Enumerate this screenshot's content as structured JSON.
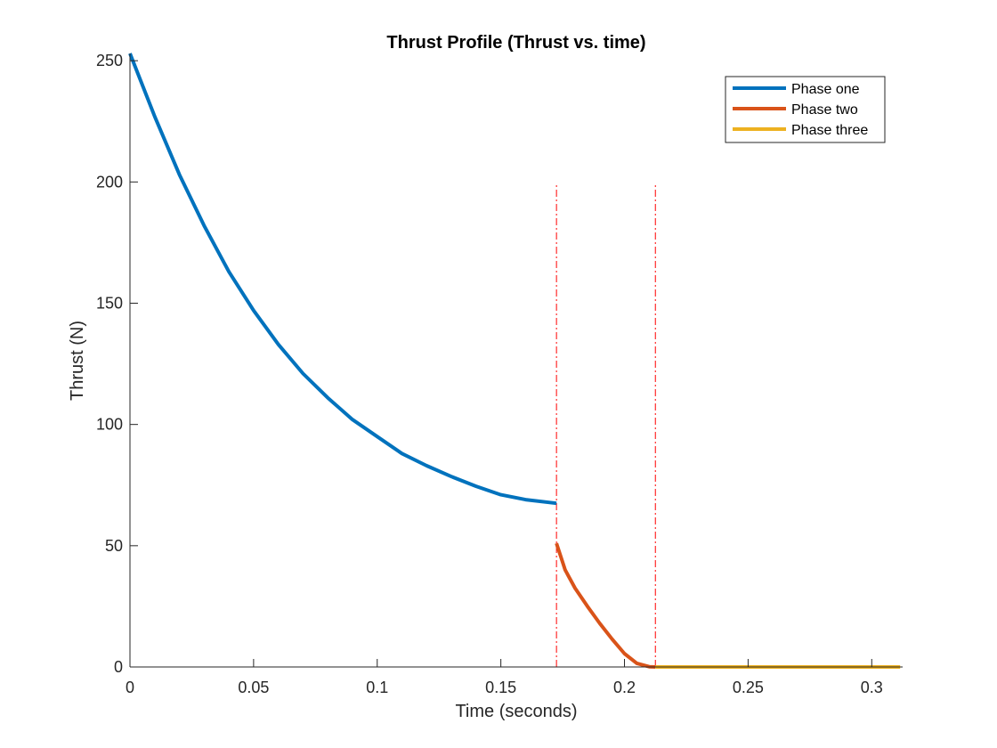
{
  "chart_data": {
    "type": "line",
    "title": "Thrust Profile (Thrust vs. time)",
    "xlabel": "Time (seconds)",
    "ylabel": "Thrust (N)",
    "xlim": [
      0,
      0.3125
    ],
    "ylim": [
      0,
      253
    ],
    "xticks": [
      0,
      0.05,
      0.1,
      0.15,
      0.2,
      0.25,
      0.3
    ],
    "xtick_labels": [
      "0",
      "0.05",
      "0.1",
      "0.15",
      "0.2",
      "0.25",
      "0.3"
    ],
    "yticks": [
      0,
      50,
      100,
      150,
      200,
      250
    ],
    "ytick_labels": [
      "0",
      "50",
      "100",
      "150",
      "200",
      "250"
    ],
    "grid": false,
    "legend_position": "top-right",
    "series": [
      {
        "name": "Phase one",
        "color": "#0072BD",
        "x": [
          0,
          0.01,
          0.02,
          0.03,
          0.04,
          0.05,
          0.06,
          0.07,
          0.08,
          0.09,
          0.1,
          0.11,
          0.12,
          0.13,
          0.14,
          0.15,
          0.16,
          0.1725
        ],
        "y": [
          253,
          227,
          203,
          182,
          163,
          147,
          133,
          121,
          111,
          102,
          95,
          88,
          83,
          78.5,
          74.5,
          71,
          69,
          67.5
        ]
      },
      {
        "name": "Phase two",
        "color": "#D95319",
        "x": [
          0.1725,
          0.176,
          0.18,
          0.185,
          0.19,
          0.195,
          0.2,
          0.205,
          0.21,
          0.2125
        ],
        "y": [
          51,
          40,
          32.5,
          25,
          18,
          11.5,
          5.5,
          1.5,
          0.1,
          0
        ]
      },
      {
        "name": "Phase three",
        "color": "#EDB120",
        "x": [
          0.2125,
          0.3115
        ],
        "y": [
          0,
          0
        ]
      }
    ],
    "annotations": [
      {
        "type": "vertical-line",
        "x": 0.1725,
        "y_range": [
          0,
          199
        ],
        "color": "#FF0000",
        "style": "dash-dot"
      },
      {
        "type": "vertical-line",
        "x": 0.2125,
        "y_range": [
          0,
          199
        ],
        "color": "#FF0000",
        "style": "dash-dot"
      }
    ]
  }
}
